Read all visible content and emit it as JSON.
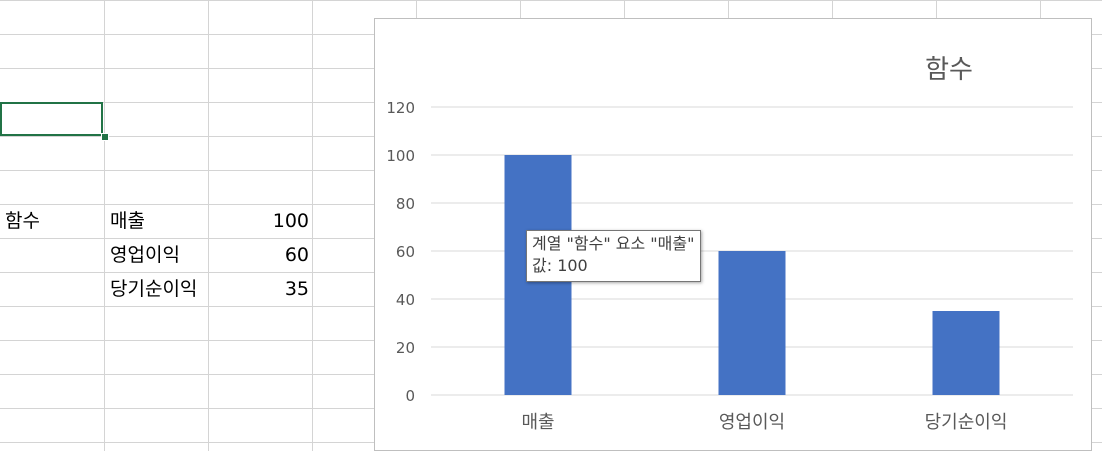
{
  "sheet": {
    "series_header": "함수",
    "rows": [
      {
        "label": "매출",
        "value": "100"
      },
      {
        "label": "영업이익",
        "value": "60"
      },
      {
        "label": "당기순이익",
        "value": "35"
      }
    ]
  },
  "chart_data": {
    "type": "bar",
    "title": "함수",
    "categories": [
      "매출",
      "영업이익",
      "당기순이익"
    ],
    "series": [
      {
        "name": "함수",
        "values": [
          100,
          60,
          35
        ]
      }
    ],
    "ylim": [
      0,
      120
    ],
    "yticks": [
      "0",
      "20",
      "40",
      "60",
      "80",
      "100",
      "120"
    ],
    "grid": true,
    "bar_color": "#4472c4",
    "xlabel": "",
    "ylabel": ""
  },
  "tooltip": {
    "line1": "계열 \"함수\" 요소 \"매출\"",
    "line2": "값: 100"
  },
  "colors": {
    "selection": "#217346",
    "gridline": "#d4d4d4",
    "chart_gridline": "#d9d9d9"
  }
}
